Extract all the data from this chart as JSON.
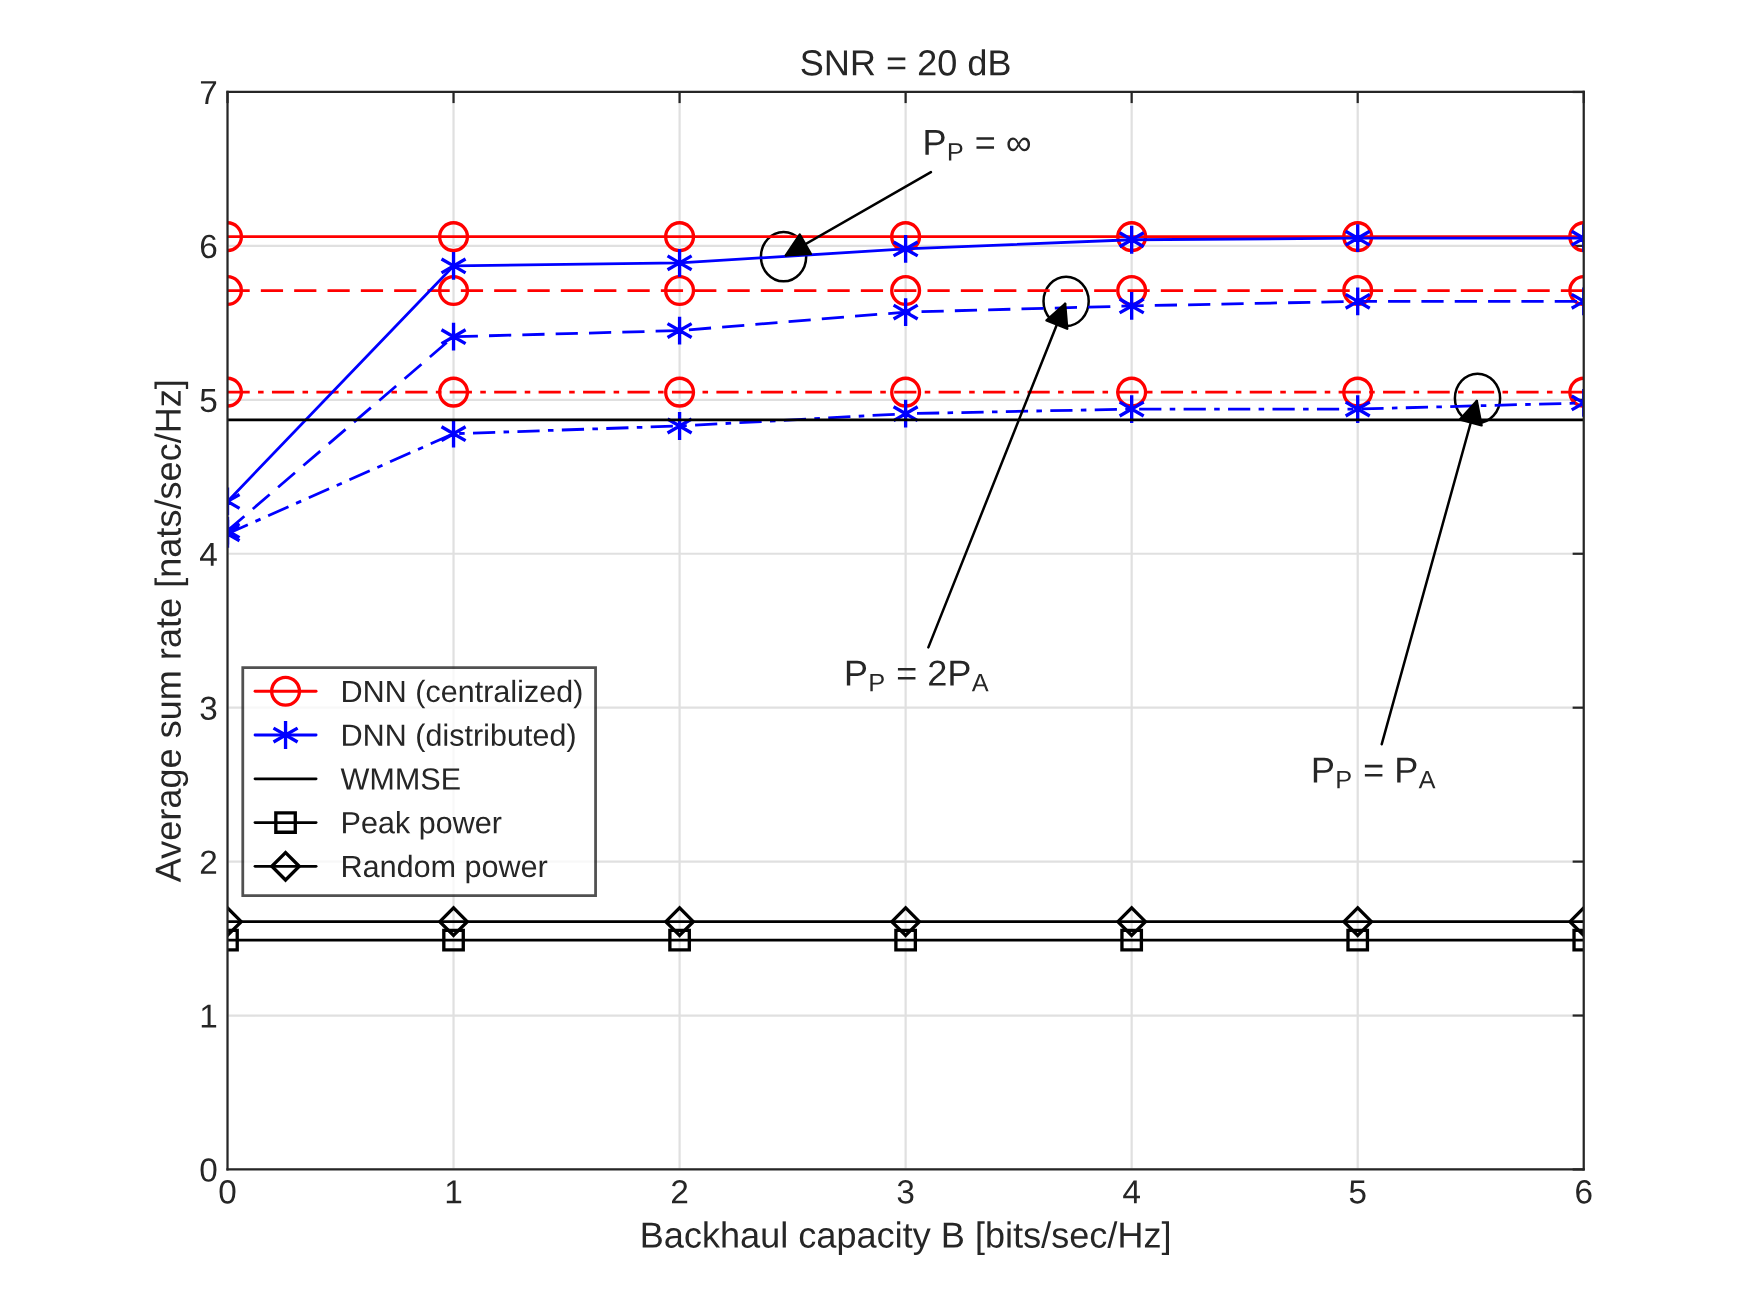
{
  "chart_data": {
    "type": "line",
    "title": "SNR = 20 dB",
    "xlabel": "Backhaul capacity B [bits/sec/Hz]",
    "ylabel": "Average sum rate [nats/sec/Hz]",
    "x": [
      0,
      1,
      2,
      3,
      4,
      5,
      6
    ],
    "series": [
      {
        "name": "DNN (centralized)",
        "color": "#ff0000",
        "marker": "circle",
        "line_style": "solid",
        "values": [
          6.06,
          6.06,
          6.06,
          6.06,
          6.06,
          6.06,
          6.06
        ]
      },
      {
        "color": "#ff0000",
        "marker": "circle",
        "line_style": "dashed",
        "values": [
          5.71,
          5.71,
          5.71,
          5.71,
          5.71,
          5.71,
          5.71
        ]
      },
      {
        "color": "#ff0000",
        "marker": "circle",
        "line_style": "dashdot",
        "values": [
          5.05,
          5.05,
          5.05,
          5.05,
          5.05,
          5.05,
          5.05
        ]
      },
      {
        "name": "DNN (distributed)",
        "color": "#0000ff",
        "marker": "cross",
        "line_style": "solid",
        "values": [
          4.34,
          5.87,
          5.89,
          5.98,
          6.04,
          6.05,
          6.05
        ]
      },
      {
        "color": "#0000ff",
        "marker": "cross",
        "line_style": "dashed",
        "values": [
          4.15,
          5.41,
          5.45,
          5.57,
          5.61,
          5.64,
          5.64
        ]
      },
      {
        "color": "#0000ff",
        "marker": "cross",
        "line_style": "dashdot",
        "values": [
          4.13,
          4.78,
          4.83,
          4.91,
          4.94,
          4.94,
          4.98
        ]
      },
      {
        "name": "WMMSE",
        "color": "#000000",
        "marker": "none",
        "line_style": "solid",
        "values": [
          4.87,
          4.87,
          4.87,
          4.87,
          4.87,
          4.87,
          4.87
        ]
      },
      {
        "name": "Peak power",
        "color": "#000000",
        "marker": "square",
        "line_style": "solid",
        "values": [
          1.49,
          1.49,
          1.49,
          1.49,
          1.49,
          1.49,
          1.49
        ]
      },
      {
        "name": "Random power",
        "color": "#000000",
        "marker": "diamond",
        "line_style": "solid",
        "values": [
          1.61,
          1.61,
          1.61,
          1.61,
          1.61,
          1.61,
          1.61
        ]
      }
    ],
    "annotations": [
      {
        "text": "P$_{P}$ = ∞",
        "x": 2.46,
        "y": 5.93
      },
      {
        "text": "P$_{P}$ = 2P$_{A}$",
        "x": 3.71,
        "y": 5.64
      },
      {
        "text": "P$_{P}$ = P$_{A}$",
        "x": 5.53,
        "y": 5.01
      }
    ],
    "xlim": [
      0,
      6
    ],
    "xticks": [
      0,
      1,
      2,
      3,
      4,
      5,
      6
    ],
    "ylim": [
      0,
      7
    ],
    "yticks": [
      0,
      1,
      2,
      3,
      4,
      5,
      6,
      7
    ],
    "grid": true,
    "legend": "left"
  }
}
